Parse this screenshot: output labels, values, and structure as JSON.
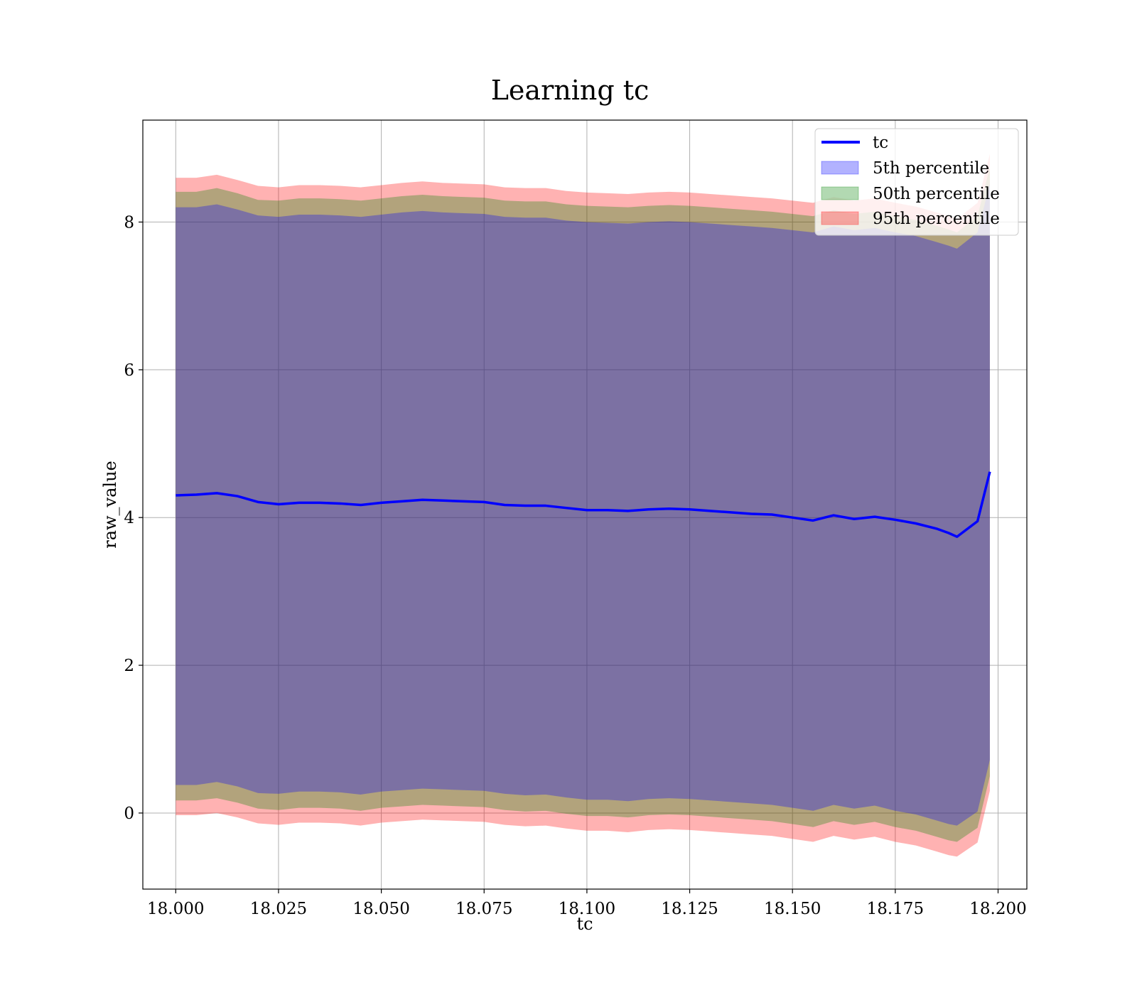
{
  "chart_data": {
    "type": "line",
    "title": "Learning tc",
    "xlabel": "tc",
    "ylabel": "raw_value",
    "xlim": [
      17.992,
      18.207
    ],
    "ylim": [
      -1.03,
      9.38
    ],
    "x_ticks": [
      18.0,
      18.025,
      18.05,
      18.075,
      18.1,
      18.125,
      18.15,
      18.175,
      18.2
    ],
    "x_tick_labels": [
      "18.000",
      "18.025",
      "18.050",
      "18.075",
      "18.100",
      "18.125",
      "18.150",
      "18.175",
      "18.200"
    ],
    "y_ticks": [
      0,
      2,
      4,
      6,
      8
    ],
    "y_tick_labels": [
      "0",
      "2",
      "4",
      "6",
      "8"
    ],
    "grid": true,
    "legend_position": "top-right",
    "legend": [
      "tc",
      "5th percentile",
      "50th percentile",
      "95th percentile"
    ],
    "colors": {
      "line": "#0000ff",
      "band_5th": "#0000ff",
      "band_50th": "#008000",
      "band_95th": "#ff0000",
      "grid": "#b0b0b0"
    },
    "x": [
      18.0,
      18.005,
      18.01,
      18.015,
      18.02,
      18.025,
      18.03,
      18.035,
      18.04,
      18.045,
      18.05,
      18.055,
      18.06,
      18.065,
      18.07,
      18.075,
      18.08,
      18.085,
      18.09,
      18.095,
      18.1,
      18.105,
      18.11,
      18.115,
      18.12,
      18.125,
      18.13,
      18.135,
      18.14,
      18.145,
      18.15,
      18.155,
      18.16,
      18.165,
      18.17,
      18.175,
      18.18,
      18.185,
      18.188,
      18.19,
      18.195,
      18.198
    ],
    "series": [
      {
        "name": "tc",
        "values": [
          4.3,
          4.31,
          4.33,
          4.29,
          4.21,
          4.18,
          4.2,
          4.2,
          4.19,
          4.17,
          4.2,
          4.22,
          4.24,
          4.23,
          4.22,
          4.21,
          4.17,
          4.16,
          4.16,
          4.13,
          4.1,
          4.1,
          4.09,
          4.11,
          4.12,
          4.11,
          4.09,
          4.07,
          4.05,
          4.04,
          4.0,
          3.96,
          4.03,
          3.98,
          4.01,
          3.97,
          3.92,
          3.85,
          3.79,
          3.74,
          3.95,
          4.62
        ]
      },
      {
        "name": "5th percentile",
        "lower": [
          0.38,
          0.38,
          0.42,
          0.36,
          0.27,
          0.26,
          0.29,
          0.29,
          0.28,
          0.25,
          0.29,
          0.31,
          0.33,
          0.32,
          0.31,
          0.3,
          0.26,
          0.24,
          0.25,
          0.21,
          0.18,
          0.18,
          0.16,
          0.19,
          0.2,
          0.19,
          0.17,
          0.15,
          0.13,
          0.11,
          0.07,
          0.03,
          0.11,
          0.06,
          0.1,
          0.03,
          -0.02,
          -0.1,
          -0.15,
          -0.17,
          0.02,
          0.72
        ],
        "upper": [
          8.2,
          8.2,
          8.24,
          8.17,
          8.09,
          8.07,
          8.1,
          8.1,
          8.09,
          8.07,
          8.1,
          8.13,
          8.15,
          8.13,
          8.12,
          8.11,
          8.07,
          8.06,
          8.06,
          8.02,
          8.0,
          7.99,
          7.98,
          8.0,
          8.01,
          8.0,
          7.98,
          7.96,
          7.94,
          7.92,
          7.89,
          7.86,
          7.94,
          7.89,
          7.92,
          7.86,
          7.81,
          7.73,
          7.68,
          7.64,
          7.86,
          8.52
        ]
      },
      {
        "name": "50th percentile",
        "lower": [
          0.17,
          0.17,
          0.2,
          0.14,
          0.06,
          0.04,
          0.07,
          0.07,
          0.06,
          0.03,
          0.07,
          0.09,
          0.11,
          0.1,
          0.09,
          0.08,
          0.04,
          0.02,
          0.03,
          -0.01,
          -0.04,
          -0.04,
          -0.06,
          -0.03,
          -0.02,
          -0.03,
          -0.05,
          -0.07,
          -0.09,
          -0.11,
          -0.15,
          -0.19,
          -0.11,
          -0.16,
          -0.12,
          -0.19,
          -0.24,
          -0.32,
          -0.37,
          -0.39,
          -0.2,
          0.5
        ]
      },
      {
        "name": "95th percentile",
        "lower": [
          -0.03,
          -0.03,
          0.0,
          -0.06,
          -0.14,
          -0.16,
          -0.13,
          -0.13,
          -0.14,
          -0.17,
          -0.13,
          -0.11,
          -0.09,
          -0.1,
          -0.11,
          -0.12,
          -0.16,
          -0.18,
          -0.17,
          -0.21,
          -0.24,
          -0.24,
          -0.26,
          -0.23,
          -0.22,
          -0.23,
          -0.25,
          -0.27,
          -0.29,
          -0.31,
          -0.35,
          -0.39,
          -0.31,
          -0.36,
          -0.32,
          -0.39,
          -0.44,
          -0.52,
          -0.57,
          -0.59,
          -0.4,
          0.3
        ],
        "upper": [
          8.6,
          8.6,
          8.64,
          8.57,
          8.49,
          8.47,
          8.5,
          8.5,
          8.49,
          8.47,
          8.5,
          8.53,
          8.55,
          8.53,
          8.52,
          8.51,
          8.47,
          8.46,
          8.46,
          8.42,
          8.4,
          8.39,
          8.38,
          8.4,
          8.41,
          8.4,
          8.38,
          8.36,
          8.34,
          8.32,
          8.29,
          8.26,
          8.34,
          8.29,
          8.32,
          8.26,
          8.21,
          8.13,
          8.08,
          8.04,
          8.26,
          8.92
        ]
      }
    ]
  }
}
